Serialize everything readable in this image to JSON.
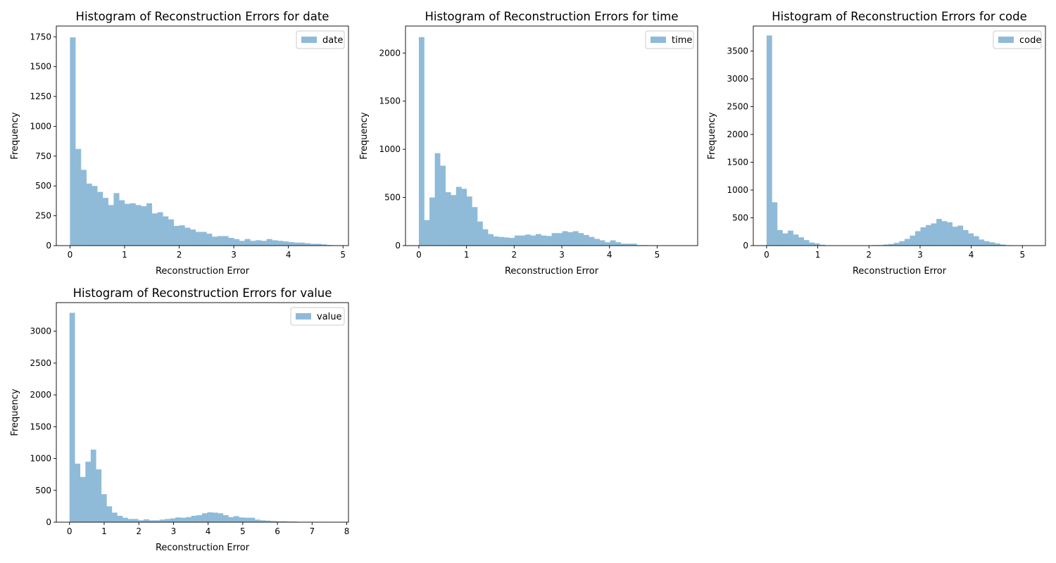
{
  "chart_data": [
    {
      "type": "bar",
      "title": "Histogram of Reconstruction Errors for date",
      "xlabel": "Reconstruction Error",
      "ylabel": "Frequency",
      "xlim": [
        -0.25,
        5.1
      ],
      "ylim": [
        0,
        1840
      ],
      "xticks": [
        0,
        1,
        2,
        3,
        4,
        5
      ],
      "yticks": [
        0,
        250,
        500,
        750,
        1000,
        1250,
        1500,
        1750
      ],
      "legend_position": "top-right",
      "series": [
        {
          "name": "date",
          "color": "#8FBBD9",
          "bin_start": 0,
          "bin_width": 0.1,
          "values": [
            1745,
            810,
            635,
            520,
            500,
            450,
            400,
            340,
            440,
            380,
            350,
            355,
            340,
            330,
            355,
            270,
            280,
            245,
            220,
            165,
            170,
            150,
            135,
            115,
            115,
            100,
            75,
            80,
            80,
            65,
            55,
            40,
            55,
            40,
            45,
            40,
            55,
            45,
            40,
            35,
            30,
            25,
            25,
            20,
            15,
            15,
            10,
            5,
            3,
            2
          ]
        }
      ]
    },
    {
      "type": "bar",
      "title": "Histogram of Reconstruction Errors for time",
      "xlabel": "Reconstruction Error",
      "ylabel": "Frequency",
      "xlim": [
        -0.28,
        5.85
      ],
      "ylim": [
        0,
        2280
      ],
      "xticks": [
        0,
        1,
        2,
        3,
        4,
        5
      ],
      "yticks": [
        0,
        500,
        1000,
        1500,
        2000
      ],
      "legend_position": "top-right",
      "series": [
        {
          "name": "time",
          "color": "#8FBBD9",
          "bin_start": 0,
          "bin_width": 0.1115,
          "values": [
            2165,
            265,
            500,
            960,
            830,
            555,
            525,
            610,
            590,
            510,
            400,
            250,
            170,
            120,
            95,
            90,
            85,
            80,
            105,
            105,
            115,
            105,
            120,
            105,
            100,
            130,
            130,
            150,
            140,
            150,
            130,
            110,
            90,
            70,
            55,
            35,
            55,
            35,
            20,
            20,
            20,
            5,
            5,
            2,
            2,
            1,
            1,
            1,
            1,
            1
          ]
        }
      ]
    },
    {
      "type": "bar",
      "title": "Histogram of Reconstruction Errors for code",
      "xlabel": "Reconstruction Error",
      "ylabel": "Frequency",
      "xlim": [
        -0.26,
        5.45
      ],
      "ylim": [
        0,
        3950
      ],
      "xticks": [
        0,
        1,
        2,
        3,
        4,
        5
      ],
      "yticks": [
        0,
        500,
        1000,
        1500,
        2000,
        2500,
        3000,
        3500
      ],
      "legend_position": "top-right",
      "series": [
        {
          "name": "code",
          "color": "#8FBBD9",
          "bin_start": 0,
          "bin_width": 0.1037,
          "values": [
            3780,
            780,
            280,
            220,
            270,
            200,
            150,
            100,
            55,
            40,
            15,
            5,
            5,
            2,
            2,
            2,
            2,
            2,
            2,
            5,
            10,
            10,
            20,
            30,
            50,
            80,
            120,
            180,
            260,
            330,
            370,
            400,
            480,
            440,
            420,
            340,
            360,
            280,
            220,
            170,
            110,
            80,
            60,
            40,
            20,
            8,
            3,
            2,
            1,
            1
          ]
        }
      ]
    },
    {
      "type": "bar",
      "title": "Histogram of Reconstruction Errors for value",
      "xlabel": "Reconstruction Error",
      "ylabel": "Frequency",
      "xlim": [
        -0.38,
        8.05
      ],
      "ylim": [
        0,
        3450
      ],
      "xticks": [
        0,
        1,
        2,
        3,
        4,
        5,
        6,
        7,
        8
      ],
      "yticks": [
        0,
        500,
        1000,
        1500,
        2000,
        2500,
        3000
      ],
      "legend_position": "top-right",
      "series": [
        {
          "name": "value",
          "color": "#8FBBD9",
          "bin_start": 0,
          "bin_width": 0.1528,
          "values": [
            3290,
            920,
            710,
            950,
            1140,
            830,
            440,
            250,
            150,
            100,
            70,
            50,
            50,
            30,
            45,
            30,
            30,
            40,
            50,
            60,
            75,
            70,
            80,
            100,
            110,
            140,
            155,
            150,
            140,
            110,
            80,
            95,
            75,
            70,
            70,
            40,
            30,
            25,
            20,
            15,
            15,
            10,
            10,
            5,
            5,
            3,
            2,
            2,
            1,
            1
          ]
        }
      ]
    }
  ]
}
